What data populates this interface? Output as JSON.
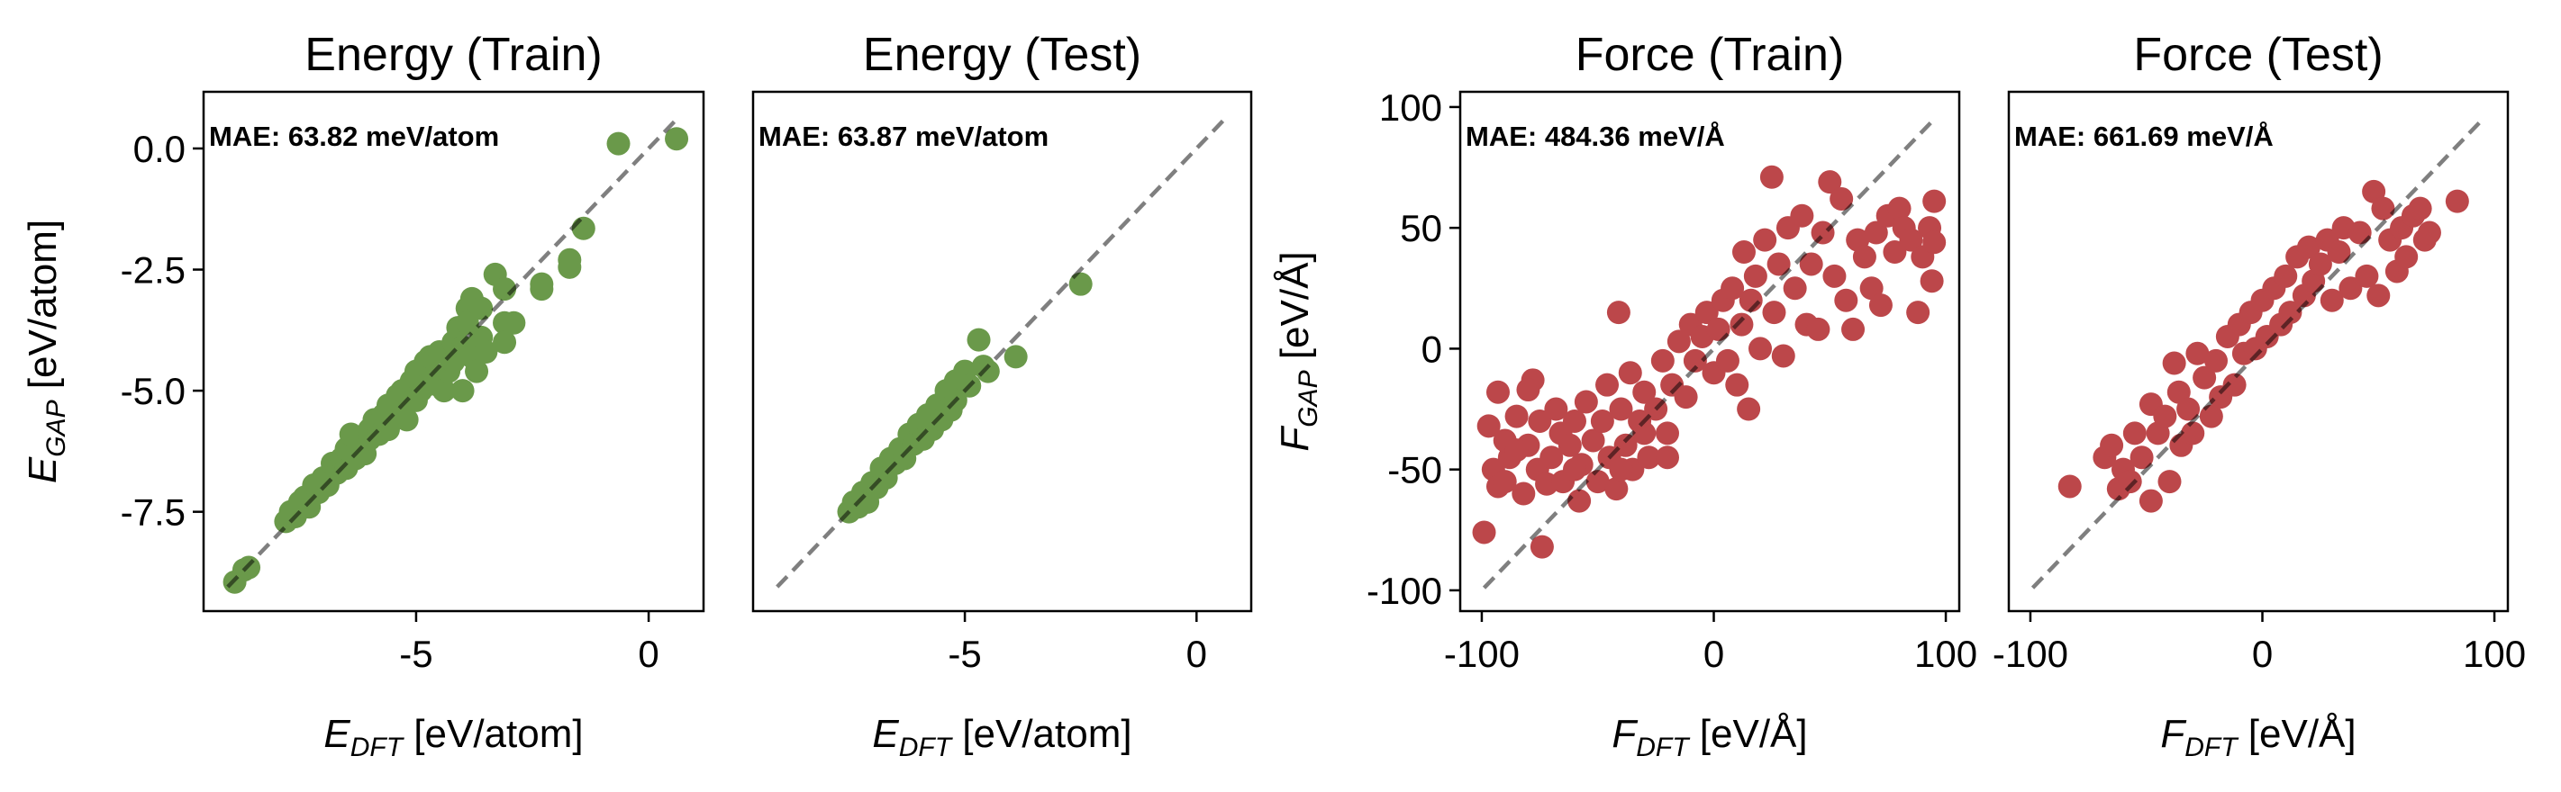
{
  "chart_data": [
    {
      "type": "scatter",
      "title": "Energy (Train)",
      "xlabel": "E_DFT [eV/atom]",
      "ylabel": "E_GAP [eV/atom]",
      "annotation": "MAE: 63.82 meV/atom",
      "xlim": [
        -9.57,
        1.18
      ],
      "ylim": [
        -9.55,
        1.17
      ],
      "xticks": [
        -5,
        0
      ],
      "yticks": [
        0.0,
        -2.5,
        -5.0,
        -7.5
      ],
      "ytick_labels": [
        "0.0",
        "-2.5",
        "-5.0",
        "-7.5"
      ],
      "show_yticks": true,
      "grid": false,
      "color": "#6a994a",
      "reference_line": [
        [
          -9.05,
          -9.05
        ],
        [
          0.6,
          0.6
        ]
      ],
      "points": [
        [
          -8.9,
          -8.95
        ],
        [
          -8.7,
          -8.7
        ],
        [
          -8.6,
          -8.65
        ],
        [
          -7.8,
          -7.7
        ],
        [
          -7.7,
          -7.5
        ],
        [
          -7.6,
          -7.6
        ],
        [
          -7.5,
          -7.3
        ],
        [
          -7.4,
          -7.2
        ],
        [
          -7.3,
          -7.4
        ],
        [
          -7.2,
          -6.95
        ],
        [
          -7.1,
          -7.1
        ],
        [
          -7.0,
          -6.8
        ],
        [
          -6.9,
          -6.95
        ],
        [
          -6.8,
          -6.5
        ],
        [
          -6.7,
          -6.7
        ],
        [
          -6.6,
          -6.4
        ],
        [
          -6.5,
          -6.6
        ],
        [
          -6.5,
          -6.2
        ],
        [
          -6.4,
          -5.9
        ],
        [
          -6.3,
          -6.4
        ],
        [
          -6.2,
          -6.1
        ],
        [
          -6.1,
          -6.3
        ],
        [
          -6.0,
          -5.8
        ],
        [
          -6.0,
          -6.0
        ],
        [
          -5.9,
          -5.6
        ],
        [
          -5.8,
          -5.9
        ],
        [
          -5.7,
          -5.5
        ],
        [
          -5.6,
          -5.8
        ],
        [
          -5.6,
          -5.3
        ],
        [
          -5.5,
          -5.6
        ],
        [
          -5.4,
          -5.1
        ],
        [
          -5.3,
          -5.4
        ],
        [
          -5.3,
          -5.0
        ],
        [
          -5.2,
          -5.6
        ],
        [
          -5.1,
          -4.8
        ],
        [
          -5.0,
          -5.2
        ],
        [
          -5.0,
          -4.6
        ],
        [
          -4.9,
          -5.0
        ],
        [
          -4.8,
          -4.4
        ],
        [
          -4.8,
          -4.9
        ],
        [
          -4.7,
          -4.3
        ],
        [
          -4.6,
          -4.7
        ],
        [
          -4.5,
          -4.2
        ],
        [
          -4.5,
          -4.9
        ],
        [
          -4.4,
          -5.0
        ],
        [
          -4.3,
          -4.6
        ],
        [
          -4.2,
          -4.0
        ],
        [
          -4.2,
          -4.4
        ],
        [
          -4.1,
          -3.7
        ],
        [
          -4.0,
          -5.0
        ],
        [
          -4.0,
          -4.1
        ],
        [
          -3.9,
          -3.3
        ],
        [
          -3.9,
          -3.6
        ],
        [
          -3.8,
          -4.3
        ],
        [
          -3.8,
          -3.1
        ],
        [
          -3.7,
          -4.6
        ],
        [
          -3.6,
          -3.9
        ],
        [
          -3.6,
          -3.3
        ],
        [
          -3.5,
          -4.2
        ],
        [
          -3.3,
          -2.6
        ],
        [
          -3.1,
          -2.9
        ],
        [
          -3.1,
          -3.6
        ],
        [
          -3.1,
          -4.0
        ],
        [
          -2.9,
          -3.6
        ],
        [
          -2.3,
          -2.8
        ],
        [
          -2.3,
          -2.9
        ],
        [
          -1.7,
          -2.3
        ],
        [
          -1.7,
          -2.45
        ],
        [
          -1.4,
          -1.65
        ],
        [
          -0.65,
          0.1
        ],
        [
          0.6,
          0.2
        ]
      ]
    },
    {
      "type": "scatter",
      "title": "Energy (Test)",
      "xlabel": "E_DFT [eV/atom]",
      "ylabel": "",
      "annotation": "MAE: 63.87 meV/atom",
      "xlim": [
        -9.57,
        1.18
      ],
      "ylim": [
        -9.55,
        1.17
      ],
      "xticks": [
        -5,
        0
      ],
      "yticks": [],
      "ytick_labels": [],
      "show_yticks": false,
      "grid": false,
      "color": "#6a994a",
      "reference_line": [
        [
          -9.05,
          -9.05
        ],
        [
          0.6,
          0.6
        ]
      ],
      "points": [
        [
          -7.5,
          -7.5
        ],
        [
          -7.4,
          -7.3
        ],
        [
          -7.3,
          -7.4
        ],
        [
          -7.2,
          -7.1
        ],
        [
          -7.1,
          -7.3
        ],
        [
          -7.0,
          -6.9
        ],
        [
          -6.9,
          -7.0
        ],
        [
          -6.8,
          -6.6
        ],
        [
          -6.7,
          -6.8
        ],
        [
          -6.6,
          -6.4
        ],
        [
          -6.5,
          -6.5
        ],
        [
          -6.4,
          -6.2
        ],
        [
          -6.3,
          -6.4
        ],
        [
          -6.2,
          -5.9
        ],
        [
          -6.1,
          -6.1
        ],
        [
          -6.0,
          -5.7
        ],
        [
          -5.9,
          -6.0
        ],
        [
          -5.8,
          -5.5
        ],
        [
          -5.7,
          -5.8
        ],
        [
          -5.6,
          -5.3
        ],
        [
          -5.5,
          -5.6
        ],
        [
          -5.4,
          -5.0
        ],
        [
          -5.3,
          -5.4
        ],
        [
          -5.2,
          -4.8
        ],
        [
          -5.2,
          -5.2
        ],
        [
          -5.0,
          -4.6
        ],
        [
          -4.9,
          -4.9
        ],
        [
          -4.7,
          -3.95
        ],
        [
          -4.6,
          -4.5
        ],
        [
          -4.5,
          -4.6
        ],
        [
          -3.9,
          -4.3
        ],
        [
          -2.5,
          -2.8
        ]
      ]
    },
    {
      "type": "scatter",
      "title": "Force (Train)",
      "xlabel": "F_DFT [eV/Å]",
      "ylabel": "F_GAP [eV/Å]",
      "annotation": "MAE: 484.36 meV/Å",
      "xlim": [
        -109.3,
        105.8
      ],
      "ylim": [
        -108.6,
        106.3
      ],
      "xticks": [
        -100,
        0,
        100
      ],
      "yticks": [
        100,
        50,
        0,
        -50,
        -100
      ],
      "ytick_labels": [
        "100",
        "50",
        "0",
        "-50",
        "-100"
      ],
      "show_yticks": true,
      "grid": false,
      "color": "#bc474a",
      "reference_line": [
        [
          -99,
          -99
        ],
        [
          95,
          95
        ]
      ],
      "points": [
        [
          -99,
          -76
        ],
        [
          -74,
          -82
        ],
        [
          -97,
          -32
        ],
        [
          -93,
          -18
        ],
        [
          -95,
          -50
        ],
        [
          -93,
          -57
        ],
        [
          -90,
          -55
        ],
        [
          -88,
          -45
        ],
        [
          -90,
          -38
        ],
        [
          -85,
          -28
        ],
        [
          -82,
          -60
        ],
        [
          -80,
          -40
        ],
        [
          -78,
          -13
        ],
        [
          -80,
          -17
        ],
        [
          -76,
          -50
        ],
        [
          -75,
          -30
        ],
        [
          -72,
          -56
        ],
        [
          -70,
          -45
        ],
        [
          -68,
          -25
        ],
        [
          -66,
          -35
        ],
        [
          -65,
          -55
        ],
        [
          -62,
          -40
        ],
        [
          -60,
          -30
        ],
        [
          -58,
          -63
        ],
        [
          -57,
          -48
        ],
        [
          -55,
          -22
        ],
        [
          -52,
          -38
        ],
        [
          -50,
          -55
        ],
        [
          -48,
          -30
        ],
        [
          -46,
          -15
        ],
        [
          -45,
          -45
        ],
        [
          -42,
          -58
        ],
        [
          -41,
          15
        ],
        [
          -40,
          -25
        ],
        [
          -38,
          -40
        ],
        [
          -36,
          -10
        ],
        [
          -35,
          -50
        ],
        [
          -32,
          -30
        ],
        [
          -30,
          -18
        ],
        [
          -28,
          -45
        ],
        [
          -25,
          -25
        ],
        [
          -22,
          -5
        ],
        [
          -20,
          -35
        ],
        [
          -18,
          -15
        ],
        [
          -15,
          3
        ],
        [
          -12,
          -20
        ],
        [
          -10,
          10
        ],
        [
          -8,
          -5
        ],
        [
          -5,
          5
        ],
        [
          -3,
          15
        ],
        [
          0,
          -10
        ],
        [
          2,
          8
        ],
        [
          4,
          20
        ],
        [
          6,
          -5
        ],
        [
          8,
          25
        ],
        [
          10,
          -15
        ],
        [
          12,
          10
        ],
        [
          13,
          40
        ],
        [
          15,
          -25
        ],
        [
          16,
          20
        ],
        [
          18,
          30
        ],
        [
          20,
          0
        ],
        [
          22,
          45
        ],
        [
          25,
          71
        ],
        [
          26,
          15
        ],
        [
          28,
          35
        ],
        [
          30,
          -3
        ],
        [
          32,
          50
        ],
        [
          35,
          25
        ],
        [
          38,
          55
        ],
        [
          40,
          10
        ],
        [
          42,
          35
        ],
        [
          45,
          8
        ],
        [
          47,
          48
        ],
        [
          50,
          69
        ],
        [
          52,
          30
        ],
        [
          55,
          62
        ],
        [
          57,
          20
        ],
        [
          60,
          8
        ],
        [
          62,
          45
        ],
        [
          65,
          38
        ],
        [
          68,
          25
        ],
        [
          70,
          48
        ],
        [
          72,
          18
        ],
        [
          75,
          55
        ],
        [
          78,
          40
        ],
        [
          80,
          58
        ],
        [
          82,
          50
        ],
        [
          85,
          45
        ],
        [
          88,
          15
        ],
        [
          90,
          38
        ],
        [
          93,
          50
        ],
        [
          94,
          28
        ],
        [
          95,
          61
        ],
        [
          95,
          44
        ],
        [
          -85,
          -42
        ],
        [
          -60,
          -50
        ],
        [
          -40,
          -50
        ],
        [
          -30,
          -35
        ],
        [
          -20,
          -45
        ]
      ]
    },
    {
      "type": "scatter",
      "title": "Force (Test)",
      "xlabel": "F_DFT [eV/Å]",
      "ylabel": "",
      "annotation": "MAE: 661.69 meV/Å",
      "xlim": [
        -109.3,
        105.8
      ],
      "ylim": [
        -108.6,
        106.3
      ],
      "xticks": [
        -100,
        0,
        100
      ],
      "yticks": [],
      "ytick_labels": [],
      "show_yticks": false,
      "grid": false,
      "color": "#bc474a",
      "reference_line": [
        [
          -99,
          -99
        ],
        [
          95,
          95
        ]
      ],
      "points": [
        [
          -83,
          -57
        ],
        [
          -68,
          -45
        ],
        [
          -65,
          -40
        ],
        [
          -62,
          -58
        ],
        [
          -60,
          -50
        ],
        [
          -57,
          -55
        ],
        [
          -55,
          -35
        ],
        [
          -52,
          -45
        ],
        [
          -48,
          -63
        ],
        [
          -48,
          -23
        ],
        [
          -45,
          -35
        ],
        [
          -42,
          -28
        ],
        [
          -40,
          -55
        ],
        [
          -38,
          -6
        ],
        [
          -36,
          -18
        ],
        [
          -35,
          -40
        ],
        [
          -32,
          -25
        ],
        [
          -30,
          -35
        ],
        [
          -28,
          -2
        ],
        [
          -25,
          -12
        ],
        [
          -22,
          -28
        ],
        [
          -20,
          -5
        ],
        [
          -18,
          -20
        ],
        [
          -15,
          5
        ],
        [
          -12,
          -15
        ],
        [
          -10,
          10
        ],
        [
          -8,
          -2
        ],
        [
          -5,
          15
        ],
        [
          -3,
          0
        ],
        [
          0,
          20
        ],
        [
          2,
          5
        ],
        [
          5,
          25
        ],
        [
          8,
          10
        ],
        [
          10,
          30
        ],
        [
          12,
          15
        ],
        [
          15,
          38
        ],
        [
          18,
          22
        ],
        [
          20,
          42
        ],
        [
          22,
          28
        ],
        [
          25,
          35
        ],
        [
          28,
          45
        ],
        [
          30,
          20
        ],
        [
          33,
          40
        ],
        [
          35,
          50
        ],
        [
          38,
          25
        ],
        [
          42,
          48
        ],
        [
          45,
          30
        ],
        [
          48,
          65
        ],
        [
          50,
          22
        ],
        [
          52,
          58
        ],
        [
          55,
          45
        ],
        [
          58,
          32
        ],
        [
          60,
          50
        ],
        [
          62,
          38
        ],
        [
          65,
          55
        ],
        [
          68,
          58
        ],
        [
          70,
          45
        ],
        [
          72,
          48
        ],
        [
          84,
          61
        ]
      ]
    }
  ]
}
